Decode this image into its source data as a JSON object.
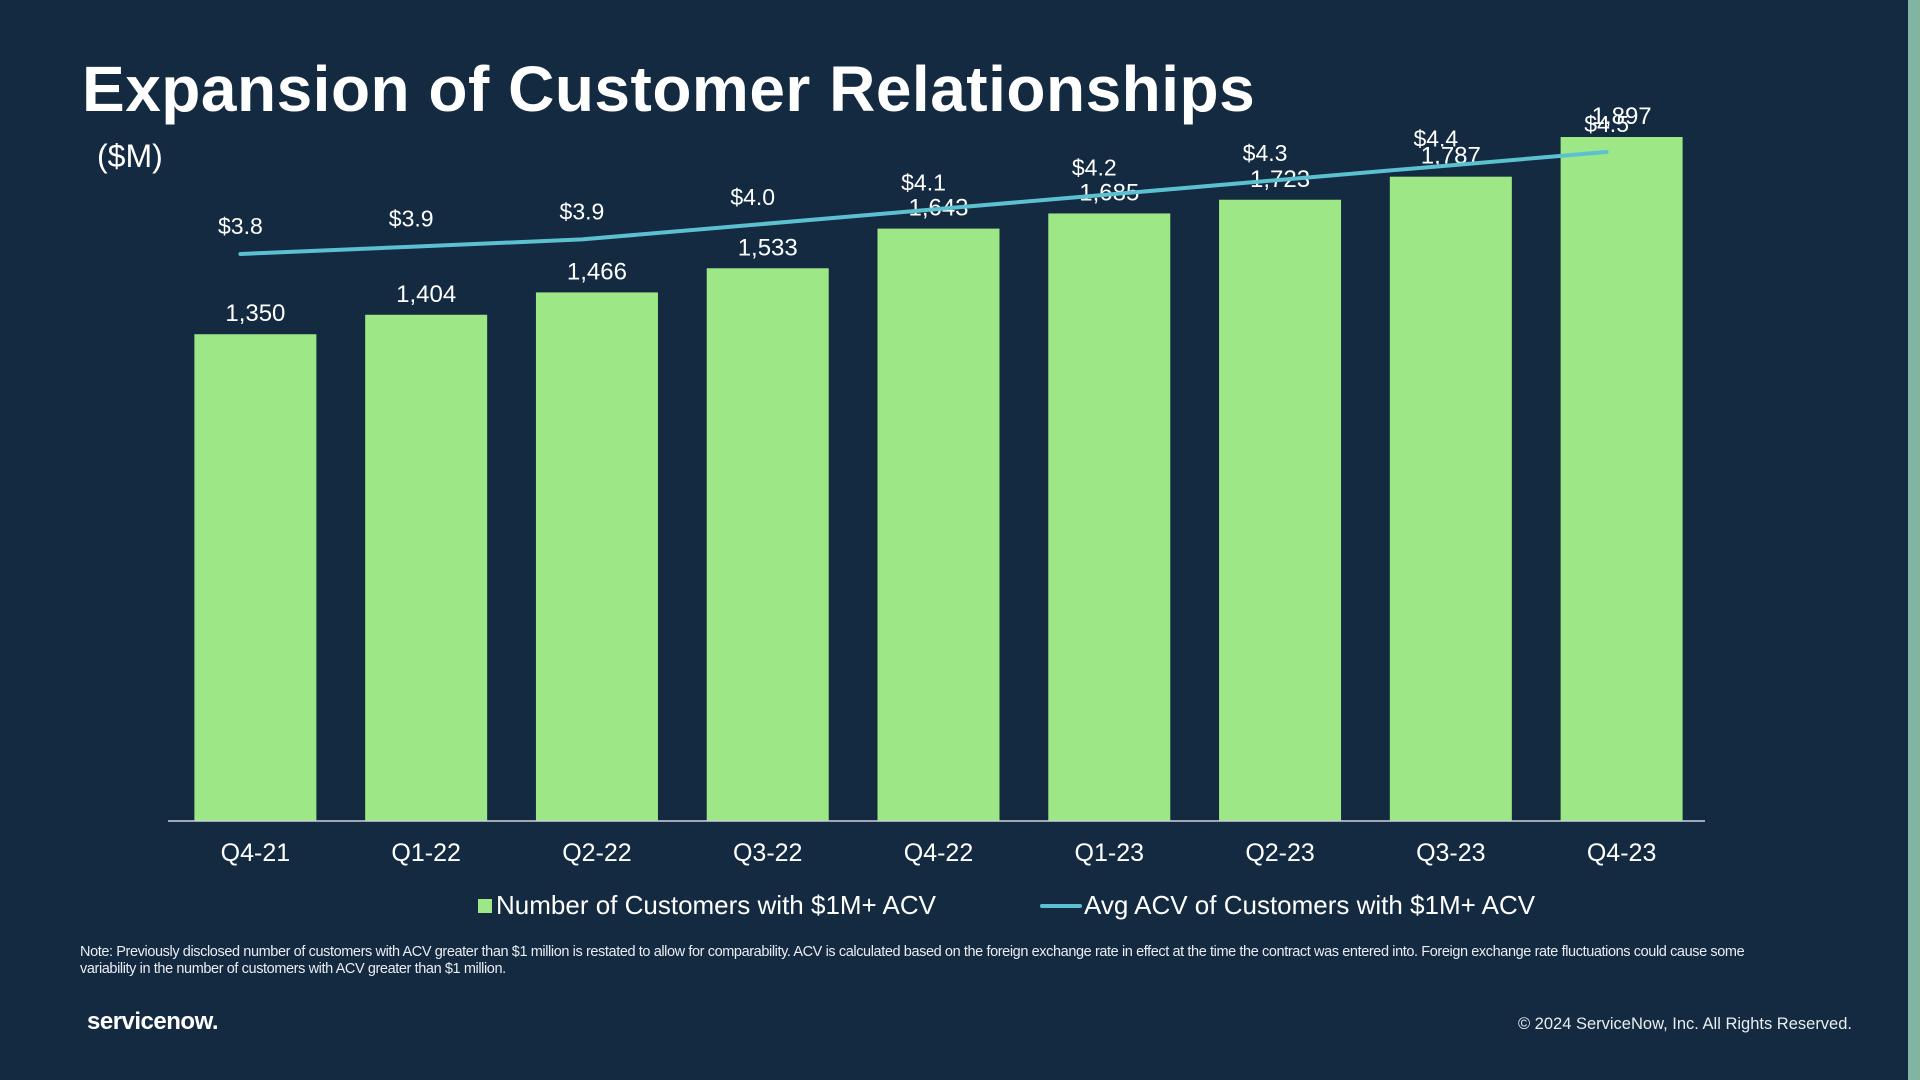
{
  "slide": {
    "title": "Expansion of Customer Relationships",
    "unit_label": "($M)",
    "note": "Note: Previously disclosed number of customers with ACV greater than $1 million is restated to allow for comparability. ACV is calculated based on the foreign exchange rate in effect at the time the contract was entered into. Foreign exchange rate fluctuations could cause some variability in the number of customers with ACV greater than $1 million.",
    "logo_text": "servicenow.",
    "copyright": "© 2024 ServiceNow, Inc. All Rights Reserved."
  },
  "colors": {
    "background": "#132a40",
    "bar": "#9ee786",
    "line": "#5bc1d0",
    "accent": "#81b5a1",
    "axis": "#c9d2da"
  },
  "legend": [
    {
      "label": "Number of Customers with $1M+ ACV",
      "swatch": "bar"
    },
    {
      "label": "Avg ACV of Customers with $1M+ ACV",
      "swatch": "line"
    }
  ],
  "chart_data": {
    "type": "bar",
    "categories": [
      "Q4-21",
      "Q1-22",
      "Q2-22",
      "Q3-22",
      "Q4-22",
      "Q1-23",
      "Q2-23",
      "Q3-23",
      "Q4-23"
    ],
    "series": [
      {
        "name": "Number of Customers with $1M+ ACV",
        "type": "bar",
        "values": [
          1350,
          1404,
          1466,
          1533,
          1643,
          1685,
          1723,
          1787,
          1897
        ],
        "labels": [
          "1,350",
          "1,404",
          "1,466",
          "1,533",
          "1,643",
          "1,685",
          "1,723",
          "1,787",
          "1,897"
        ]
      },
      {
        "name": "Avg ACV of Customers with $1M+ ACV",
        "type": "line",
        "values": [
          3.8,
          3.85,
          3.9,
          4.0,
          4.1,
          4.2,
          4.3,
          4.4,
          4.5
        ],
        "labels": [
          "$3.8",
          "$3.9",
          "$3.9",
          "$4.0",
          "$4.1",
          "$4.2",
          "$4.3",
          "$4.4",
          "$4.5"
        ]
      }
    ],
    "title": "Expansion of Customer Relationships",
    "ylabel": "($M)",
    "ylim_bars": [
      0,
      2000
    ],
    "ylim_line": [
      3.0,
      4.8
    ],
    "grid": false,
    "legend_position": "bottom"
  }
}
